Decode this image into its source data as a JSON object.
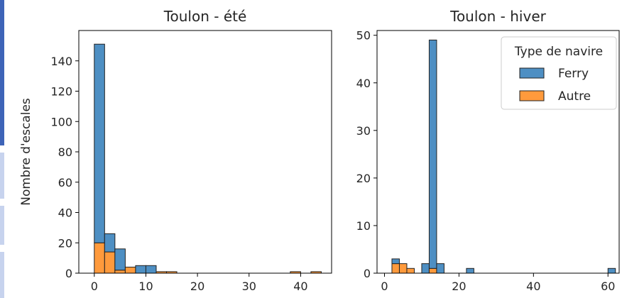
{
  "ylabel": "Nombre d'escales",
  "colors": {
    "ferry": "#4e8fc3",
    "autre": "#ff9a3c",
    "edge": "#222222",
    "window_edge_dark": "#3e64b8",
    "window_edge_light": "#c7d3ee"
  },
  "legend": {
    "title": "Type de navire",
    "placement": "upper-right of second panel",
    "items": [
      {
        "label": "Ferry",
        "color_key": "ferry"
      },
      {
        "label": "Autre",
        "color_key": "autre"
      }
    ]
  },
  "chart_data": [
    {
      "type": "bar",
      "stacked": true,
      "title": "Toulon - été",
      "xlabel": "",
      "ylabel": "Nombre d'escales",
      "xlim": [
        -3,
        46
      ],
      "ylim": [
        0,
        160
      ],
      "xticks": [
        0,
        10,
        20,
        30,
        40
      ],
      "yticks": [
        0,
        20,
        40,
        60,
        80,
        100,
        120,
        140
      ],
      "grid": false,
      "bins": [
        {
          "x0": 0,
          "x1": 2,
          "autre": 20,
          "ferry": 131
        },
        {
          "x0": 2,
          "x1": 4,
          "autre": 14,
          "ferry": 12
        },
        {
          "x0": 4,
          "x1": 6,
          "autre": 2,
          "ferry": 14
        },
        {
          "x0": 6,
          "x1": 8,
          "autre": 4,
          "ferry": 0
        },
        {
          "x0": 8,
          "x1": 10,
          "autre": 0,
          "ferry": 5
        },
        {
          "x0": 10,
          "x1": 12,
          "autre": 0,
          "ferry": 5
        },
        {
          "x0": 12,
          "x1": 14,
          "autre": 1,
          "ferry": 0
        },
        {
          "x0": 14,
          "x1": 16,
          "autre": 1,
          "ferry": 0
        },
        {
          "x0": 38,
          "x1": 40,
          "autre": 1,
          "ferry": 0
        },
        {
          "x0": 42,
          "x1": 44,
          "autre": 1,
          "ferry": 0
        }
      ]
    },
    {
      "type": "bar",
      "stacked": true,
      "title": "Toulon - hiver",
      "xlabel": "",
      "ylabel": "",
      "xlim": [
        -2,
        63
      ],
      "ylim": [
        0,
        51
      ],
      "xticks": [
        0,
        20,
        40,
        60
      ],
      "yticks": [
        0,
        10,
        20,
        30,
        40,
        50
      ],
      "grid": false,
      "bins": [
        {
          "x0": 2,
          "x1": 4,
          "autre": 2,
          "ferry": 1
        },
        {
          "x0": 4,
          "x1": 6,
          "autre": 2,
          "ferry": 0
        },
        {
          "x0": 6,
          "x1": 8,
          "autre": 1,
          "ferry": 0
        },
        {
          "x0": 10,
          "x1": 12,
          "autre": 0,
          "ferry": 2
        },
        {
          "x0": 12,
          "x1": 14,
          "autre": 1,
          "ferry": 48
        },
        {
          "x0": 14,
          "x1": 16,
          "autre": 0,
          "ferry": 2
        },
        {
          "x0": 22,
          "x1": 24,
          "autre": 0,
          "ferry": 1
        },
        {
          "x0": 60,
          "x1": 62,
          "autre": 0,
          "ferry": 1
        }
      ]
    }
  ]
}
